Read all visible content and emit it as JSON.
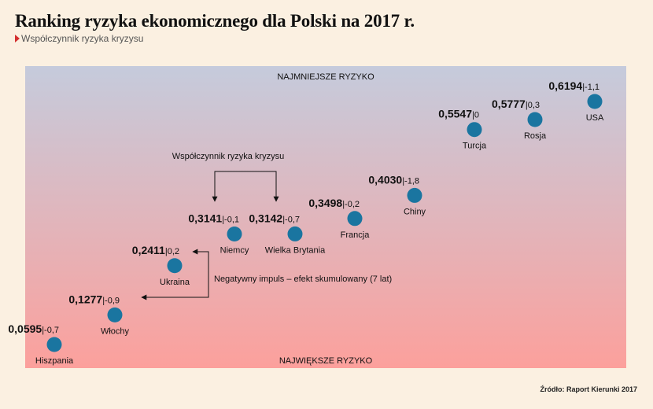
{
  "header": {
    "title": "Ranking ryzyka ekonomicznego dla Polski na 2017 r.",
    "subtitle": "Współczynnik ryzyka kryzysu"
  },
  "footer": {
    "source": "Źródło: Raport Kierunki 2017"
  },
  "chart_data": {
    "type": "scatter",
    "title": "Ranking ryzyka ekonomicznego dla Polski na 2017 r.",
    "subtitle": "Współczynnik ryzyka kryzysu",
    "top_label": "NAJMNIEJSZE RYZYKO",
    "bottom_label": "NAJWIĘKSZE RYZYKO",
    "ylim": [
      0,
      0.7
    ],
    "legend": "none",
    "grid": false,
    "colors": {
      "point": "#1a75a0",
      "gradient_top": "#c5cbdc",
      "gradient_bottom": "#fca09c"
    },
    "points": [
      {
        "country": "Hiszpania",
        "value": 0.0595,
        "value_label": "0,0595",
        "impulse": "|-0,7"
      },
      {
        "country": "Włochy",
        "value": 0.1277,
        "value_label": "0,1277",
        "impulse": "|-0,9"
      },
      {
        "country": "Ukraina",
        "value": 0.2411,
        "value_label": "0,2411",
        "impulse": "|0,2"
      },
      {
        "country": "Niemcy",
        "value": 0.3141,
        "value_label": "0,3141",
        "impulse": "|-0,1"
      },
      {
        "country": "Wielka Brytania",
        "value": 0.3142,
        "value_label": "0,3142",
        "impulse": "|-0,7"
      },
      {
        "country": "Francja",
        "value": 0.3498,
        "value_label": "0,3498",
        "impulse": "|-0,2"
      },
      {
        "country": "Chiny",
        "value": 0.403,
        "value_label": "0,4030",
        "impulse": "|-1,8"
      },
      {
        "country": "Turcja",
        "value": 0.5547,
        "value_label": "0,5547",
        "impulse": "|0"
      },
      {
        "country": "Rosja",
        "value": 0.5777,
        "value_label": "0,5777",
        "impulse": "|0,3"
      },
      {
        "country": "USA",
        "value": 0.6194,
        "value_label": "0,6194",
        "impulse": "|-1,1"
      }
    ],
    "annotations": {
      "coefficient": "Współczynnik ryzyka kryzysu",
      "impulse": "Negatywny impuls – efekt skumulowany (7 lat)"
    }
  }
}
